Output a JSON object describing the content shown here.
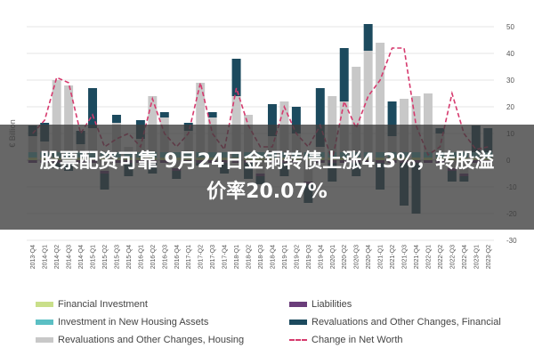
{
  "banner": {
    "line1": "股票配资可靠 9月24日金铜转债上涨4.3%，转股溢",
    "line2": "价率20.07%"
  },
  "chart_data": {
    "type": "bar",
    "ylabel": "€ Billion",
    "ylim": [
      -30,
      50
    ],
    "yticks": [
      -30,
      -20,
      -10,
      0,
      10,
      20,
      30,
      40,
      50
    ],
    "grid": true,
    "legend_placement": "bottom",
    "categories": [
      "2013-Q4",
      "2014-Q1",
      "2014-Q2",
      "2014-Q3",
      "2014-Q4",
      "2015-Q1",
      "2015-Q2",
      "2015-Q3",
      "2015-Q4",
      "2016-Q1",
      "2016-Q2",
      "2016-Q3",
      "2016-Q4",
      "2017-Q1",
      "2017-Q2",
      "2017-Q3",
      "2017-Q4",
      "2018-Q1",
      "2018-Q2",
      "2018-Q3",
      "2018-Q4",
      "2019-Q1",
      "2019-Q2",
      "2019-Q3",
      "2019-Q4",
      "2020-Q1",
      "2020-Q2",
      "2020-Q3",
      "2020-Q4",
      "2021-Q1",
      "2021-Q2",
      "2021-Q3",
      "2021-Q4",
      "2022-Q1",
      "2022-Q2",
      "2022-Q3",
      "2022-Q4",
      "2023-Q1",
      "2023-Q2"
    ],
    "series": [
      {
        "name": "Financial Investment",
        "color": "#c9df8a",
        "kind": "bar",
        "values": [
          1,
          1,
          1,
          1,
          1,
          1,
          1,
          1,
          1,
          1,
          1,
          1,
          1,
          1,
          1,
          1,
          1,
          1,
          1,
          1,
          1,
          1,
          1,
          1,
          1,
          1,
          1,
          1,
          1,
          1,
          1,
          1,
          1,
          1,
          1,
          1,
          1,
          1,
          1
        ]
      },
      {
        "name": "Investment in New Housing Assets",
        "color": "#5bbfc4",
        "kind": "bar",
        "values": [
          2,
          2,
          2,
          2,
          2,
          2,
          2,
          2,
          2,
          2,
          2,
          2,
          2,
          2,
          2,
          2,
          2,
          2,
          2,
          2,
          2,
          2,
          2,
          2,
          2,
          2,
          2,
          2,
          2,
          2,
          2,
          2,
          2,
          2,
          2,
          2,
          2,
          2,
          2
        ]
      },
      {
        "name": "Revaluations and Other Changes, Housing",
        "color": "#c8c8c8",
        "kind": "bar",
        "values": [
          6,
          4,
          27,
          25,
          3,
          9,
          -4,
          11,
          2,
          5,
          21,
          13,
          -3,
          8,
          26,
          13,
          0,
          21,
          14,
          -5,
          6,
          19,
          7,
          -8,
          2,
          21,
          19,
          32,
          38,
          41,
          6,
          20,
          21,
          22,
          7,
          -3,
          -5,
          0,
          0
        ]
      },
      {
        "name": "Liabilities",
        "color": "#6a3d7a",
        "kind": "bar",
        "values": [
          -1,
          -1,
          -1,
          -1,
          -1,
          -1,
          -1,
          -1,
          -1,
          -1,
          -1,
          -1,
          -1,
          -1,
          -1,
          -1,
          -1,
          -1,
          -1,
          -1,
          -1,
          -1,
          -1,
          -1,
          -1,
          -1,
          -1,
          -1,
          -1,
          -1,
          -1,
          -1,
          -1,
          -1,
          -1,
          -1,
          -1,
          -1,
          -1
        ]
      },
      {
        "name": "Revaluations and Other Changes, Financial",
        "color": "#1c4a5e",
        "kind": "bar",
        "values": [
          4,
          7,
          -2,
          -3,
          5,
          15,
          -6,
          3,
          -5,
          7,
          -4,
          2,
          -3,
          3,
          -1,
          2,
          -4,
          14,
          -6,
          -3,
          12,
          -5,
          10,
          -7,
          22,
          -7,
          20,
          -5,
          10,
          -10,
          13,
          -16,
          -19,
          0,
          2,
          -4,
          -2,
          10,
          9
        ]
      },
      {
        "name": "Change in Net Worth",
        "color": "#d63a6e",
        "kind": "line",
        "values": [
          10,
          15,
          31,
          29,
          10,
          17,
          5,
          8,
          10,
          5,
          23,
          10,
          5,
          10,
          29,
          10,
          4,
          27,
          13,
          5,
          5,
          20,
          10,
          5,
          13,
          0,
          22,
          12,
          24,
          30,
          42,
          42,
          13,
          2,
          5,
          25,
          10,
          4,
          5
        ]
      }
    ]
  }
}
